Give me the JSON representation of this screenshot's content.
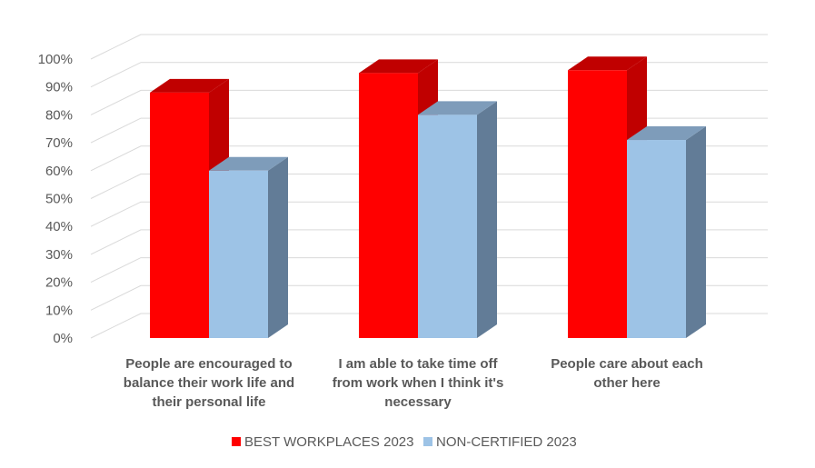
{
  "chart_data": {
    "type": "bar",
    "title": "",
    "xlabel": "",
    "ylabel": "",
    "ylim": [
      0,
      100
    ],
    "y_ticks": [
      "0%",
      "10%",
      "20%",
      "30%",
      "40%",
      "50%",
      "60%",
      "70%",
      "80%",
      "90%",
      "100%"
    ],
    "categories": [
      [
        "People are encouraged to",
        "balance their work life and",
        "their personal life"
      ],
      [
        "I am able to take time off",
        "from work when I think it's",
        "necessary"
      ],
      [
        "People care about each",
        "other here"
      ]
    ],
    "series": [
      {
        "name": "BEST WORKPLACES 2023",
        "values": [
          88,
          95,
          96
        ],
        "color": "#ff0000",
        "side": "#c00000",
        "top": "#c00000"
      },
      {
        "name": "NON-CERTIFIED 2023",
        "values": [
          60,
          80,
          71
        ],
        "color": "#9dc3e6",
        "side": "#627c97",
        "top": "#7e9cba"
      }
    ],
    "grid": true,
    "legend_position": "bottom",
    "style": "3d-clustered-column"
  }
}
